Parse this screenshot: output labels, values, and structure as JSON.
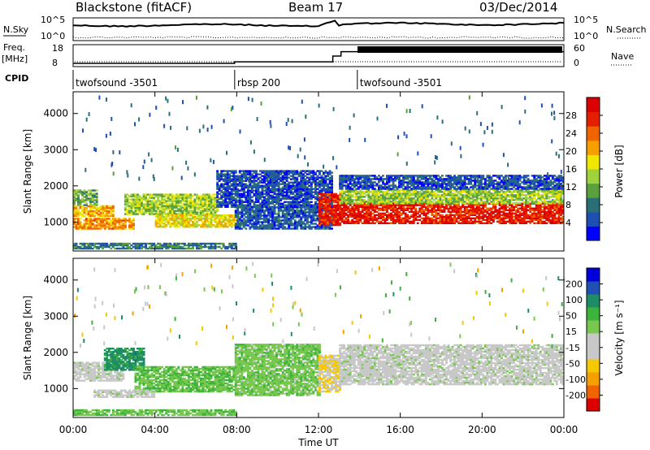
{
  "header": {
    "station": "Blackstone (fitACF)",
    "beam": "Beam 17",
    "date": "03/Dec/2014"
  },
  "labels": {
    "nsky": "N.Sky",
    "nsearch": "N.Search",
    "freq": "Freq.",
    "freq_unit": "[MHz]",
    "nave": "Nave",
    "cpid": "CPID",
    "power_axis": "Power [dB]",
    "velocity_axis": "Velocity [m s⁻¹]",
    "slant_range": "Slant Range [km]",
    "time_axis": "Time UT"
  },
  "noise_panel": {
    "left_ticks": [
      "10^5",
      "10^0"
    ],
    "right_ticks": [
      "10^5",
      "10^0"
    ]
  },
  "freq_panel": {
    "left_ticks": [
      "18",
      "8"
    ],
    "right_ticks": [
      "60",
      "0"
    ],
    "freq_steps": [
      {
        "t": 0,
        "f": 9.5
      },
      {
        "t": 7.9,
        "f": 9.5
      },
      {
        "t": 7.9,
        "f": 10.2
      },
      {
        "t": 12.7,
        "f": 10.2
      },
      {
        "t": 12.7,
        "f": 12.8
      },
      {
        "t": 13.1,
        "f": 12.8
      },
      {
        "t": 13.1,
        "f": 14.8
      },
      {
        "t": 24,
        "f": 14.8
      }
    ]
  },
  "cpid_panel": {
    "segments": [
      {
        "label": "twofsound -3501",
        "start": 0,
        "end": 7.9
      },
      {
        "label": "rbsp 200",
        "start": 7.9,
        "end": 13.9
      },
      {
        "label": "twofsound -3501",
        "start": 13.9,
        "end": 24
      }
    ]
  },
  "colorbars": {
    "power": {
      "ticks": [
        "28",
        "24",
        "20",
        "16",
        "12",
        "8",
        "4"
      ],
      "colors": [
        "#0000ff",
        "#1e50b4",
        "#2a6e78",
        "#5aa03c",
        "#a0d23c",
        "#f0e600",
        "#f5a000",
        "#f06400",
        "#e61e00",
        "#dc0000"
      ]
    },
    "velocity": {
      "ticks": [
        "200",
        "100",
        "50",
        "15",
        "-15",
        "-50",
        "-100",
        "-200"
      ],
      "colors": [
        "#dc0000",
        "#f06400",
        "#f5a000",
        "#f5c800",
        "#c8c8c8",
        "#c8c8c8",
        "#78c850",
        "#3cb43c",
        "#1e8c64",
        "#2050b4",
        "#0000dc"
      ]
    }
  },
  "chart_data": [
    {
      "type": "heatmap",
      "title": "Power [dB]",
      "xlabel": "",
      "ylabel": "Slant Range [km]",
      "x_ticks": [
        "00:00",
        "04:00",
        "08:00",
        "12:00",
        "16:00",
        "20:00",
        "00:00"
      ],
      "y_ticks": [
        1000,
        2000,
        3000,
        4000
      ],
      "xlim": [
        0,
        24
      ],
      "ylim": [
        200,
        4600
      ],
      "zlim": [
        0,
        32
      ],
      "bands": [
        {
          "t0": 0.0,
          "t1": 7.9,
          "r0": 250,
          "r1": 420,
          "p": 8
        },
        {
          "t0": 0.0,
          "t1": 3.0,
          "r0": 800,
          "r1": 1100,
          "p": 22
        },
        {
          "t0": 0.0,
          "t1": 2.0,
          "r0": 1150,
          "r1": 1450,
          "p": 20
        },
        {
          "t0": 0.0,
          "t1": 1.2,
          "r0": 1450,
          "r1": 1900,
          "p": 12
        },
        {
          "t0": 2.5,
          "t1": 7.0,
          "r0": 1200,
          "r1": 1750,
          "p": 14
        },
        {
          "t0": 4.0,
          "t1": 7.9,
          "r0": 850,
          "r1": 1200,
          "p": 18
        },
        {
          "t0": 7.9,
          "t1": 12.6,
          "r0": 800,
          "r1": 1400,
          "p": 6
        },
        {
          "t0": 7.0,
          "t1": 12.6,
          "r0": 1400,
          "r1": 2400,
          "p": 5
        },
        {
          "t0": 12.0,
          "t1": 13.0,
          "r0": 900,
          "r1": 1800,
          "p": 28
        },
        {
          "t0": 13.0,
          "t1": 24.0,
          "r0": 950,
          "r1": 1500,
          "p": 28
        },
        {
          "t0": 13.0,
          "t1": 24.0,
          "r0": 1500,
          "r1": 1900,
          "p": 14
        },
        {
          "t0": 13.0,
          "t1": 24.0,
          "r0": 1900,
          "r1": 2300,
          "p": 5
        }
      ]
    },
    {
      "type": "heatmap",
      "title": "Velocity [m s⁻¹]",
      "xlabel": "Time UT",
      "ylabel": "Slant Range [km]",
      "x_ticks": [
        "00:00",
        "04:00",
        "08:00",
        "12:00",
        "16:00",
        "20:00",
        "00:00"
      ],
      "y_ticks": [
        1000,
        2000,
        3000,
        4000
      ],
      "xlim": [
        0,
        24
      ],
      "ylim": [
        200,
        4600
      ],
      "zlim": [
        -250,
        250
      ],
      "bands": [
        {
          "t0": 0.0,
          "t1": 7.9,
          "r0": 250,
          "r1": 420,
          "v": -60
        },
        {
          "t0": 0.0,
          "t1": 2.5,
          "r0": 1200,
          "r1": 1700,
          "v": 0
        },
        {
          "t0": 1.5,
          "t1": 3.5,
          "r0": 1500,
          "r1": 2100,
          "v": -130
        },
        {
          "t0": 3.0,
          "t1": 7.9,
          "r0": 900,
          "r1": 1600,
          "v": -60
        },
        {
          "t0": 1.0,
          "t1": 4.0,
          "r0": 750,
          "r1": 950,
          "v": 0
        },
        {
          "t0": 7.9,
          "t1": 12.0,
          "r0": 800,
          "r1": 2200,
          "v": -50
        },
        {
          "t0": 12.0,
          "t1": 13.0,
          "r0": 900,
          "r1": 1900,
          "v": 70
        },
        {
          "t0": 13.0,
          "t1": 24.0,
          "r0": 1100,
          "r1": 2200,
          "v": 0
        }
      ]
    }
  ]
}
